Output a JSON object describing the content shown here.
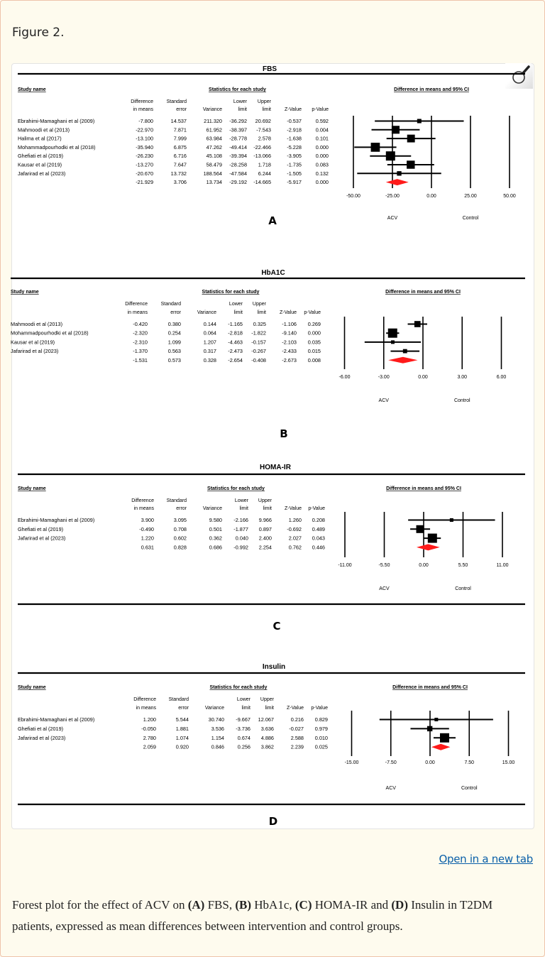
{
  "figure_label": "Figure 2.",
  "open_link": "Open in a new tab",
  "caption": {
    "parts": [
      "Forest plot for the effect of ACV on ",
      "(A)",
      " FBS, ",
      "(B)",
      " HbA1c, ",
      "(C)",
      " HOMA-IR and ",
      "(D)",
      " Insulin in T2DM patients, expressed as mean differences between intervention and control groups."
    ]
  },
  "icons": {
    "zoom": "magnifier-icon"
  },
  "colors": {
    "diamond": "#ff1a1a",
    "link": "#0a5fa8"
  },
  "chart_data": [
    {
      "type": "forest",
      "title": "FBS",
      "letter": "A",
      "study_header": "Study name",
      "stats_header": "Statistics for each study",
      "plot_header": "Difference in means and 95% CI",
      "columns": [
        [
          "Difference",
          "in means"
        ],
        [
          "Standard",
          "error"
        ],
        [
          "",
          "Variance"
        ],
        [
          "Lower",
          "limit"
        ],
        [
          "Upper",
          "limit"
        ],
        [
          "",
          "Z-Value"
        ],
        [
          "",
          "p-Value"
        ]
      ],
      "rows": [
        {
          "study": "Ebrahimi-Mamaghani et al (2009)",
          "values": [
            "-7.800",
            "14.537",
            "211.320",
            "-36.292",
            "20.692",
            "-0.537",
            "0.592"
          ],
          "estimate": -7.8,
          "lower": -36.292,
          "upper": 20.692,
          "variance": 211.32
        },
        {
          "study": "Mahmoodi et al (2013)",
          "values": [
            "-22.970",
            "7.871",
            "61.952",
            "-38.397",
            "-7.543",
            "-2.918",
            "0.004"
          ],
          "estimate": -22.97,
          "lower": -38.397,
          "upper": -7.543,
          "variance": 61.952
        },
        {
          "study": "Halima et al (2017)",
          "values": [
            "-13.100",
            "7.999",
            "63.984",
            "-28.778",
            "2.578",
            "-1.638",
            "0.101"
          ],
          "estimate": -13.1,
          "lower": -28.778,
          "upper": 2.578,
          "variance": 63.984
        },
        {
          "study": "Mohammadpourhodki et al (2018)",
          "values": [
            "-35.940",
            "6.875",
            "47.262",
            "-49.414",
            "-22.466",
            "-5.228",
            "0.000"
          ],
          "estimate": -35.94,
          "lower": -49.414,
          "upper": -22.466,
          "variance": 47.262
        },
        {
          "study": "Ghefiati et al (2019)",
          "values": [
            "-26.230",
            "6.716",
            "45.108",
            "-39.394",
            "-13.066",
            "-3.905",
            "0.000"
          ],
          "estimate": -26.23,
          "lower": -39.394,
          "upper": -13.066,
          "variance": 45.108
        },
        {
          "study": "Kausar et al (2019)",
          "values": [
            "-13.270",
            "7.647",
            "58.479",
            "-28.258",
            "1.718",
            "-1.735",
            "0.083"
          ],
          "estimate": -13.27,
          "lower": -28.258,
          "upper": 1.718,
          "variance": 58.479
        },
        {
          "study": "Jafarirad et al (2023)",
          "values": [
            "-20.670",
            "13.732",
            "188.564",
            "-47.584",
            "6.244",
            "-1.505",
            "0.132"
          ],
          "estimate": -20.67,
          "lower": -47.584,
          "upper": 6.244,
          "variance": 188.564
        }
      ],
      "summary": {
        "values": [
          "-21.929",
          "3.706",
          "13.734",
          "-29.192",
          "-14.665",
          "-5.917",
          "0.000"
        ],
        "estimate": -21.929,
        "lower": -29.192,
        "upper": -14.665
      },
      "ticks": [
        -50,
        -25,
        0,
        25,
        50
      ],
      "tick_labels": [
        "-50.00",
        "-25.00",
        "0.00",
        "25.00",
        "50.00"
      ],
      "xlim": [
        -50,
        50
      ],
      "left_label": "ACV",
      "right_label": "Control"
    },
    {
      "type": "forest",
      "title": "HbA1C",
      "letter": "B",
      "study_header": "Study name",
      "stats_header": "Statistics for each study",
      "plot_header": "Difference in means and 95% CI",
      "columns": [
        [
          "Difference",
          "in means"
        ],
        [
          "Standard",
          "error"
        ],
        [
          "",
          "Variance"
        ],
        [
          "Lower",
          "limit"
        ],
        [
          "Upper",
          "limit"
        ],
        [
          "",
          "Z-Value"
        ],
        [
          "",
          "p-Value"
        ]
      ],
      "rows": [
        {
          "study": "Mahmoodi et al (2013)",
          "values": [
            "-0.420",
            "0.380",
            "0.144",
            "-1.165",
            "0.325",
            "-1.106",
            "0.269"
          ],
          "estimate": -0.42,
          "lower": -1.165,
          "upper": 0.325,
          "variance": 0.144
        },
        {
          "study": "Mohammadpourhodki et al (2018)",
          "values": [
            "-2.320",
            "0.254",
            "0.064",
            "-2.818",
            "-1.822",
            "-9.140",
            "0.000"
          ],
          "estimate": -2.32,
          "lower": -2.818,
          "upper": -1.822,
          "variance": 0.064
        },
        {
          "study": "Kausar et al (2019)",
          "values": [
            "-2.310",
            "1.099",
            "1.207",
            "-4.463",
            "-0.157",
            "-2.103",
            "0.035"
          ],
          "estimate": -2.31,
          "lower": -4.463,
          "upper": -0.157,
          "variance": 1.207
        },
        {
          "study": "Jafarirad et al (2023)",
          "values": [
            "-1.370",
            "0.563",
            "0.317",
            "-2.473",
            "-0.267",
            "-2.433",
            "0.015"
          ],
          "estimate": -1.37,
          "lower": -2.473,
          "upper": -0.267,
          "variance": 0.317
        }
      ],
      "summary": {
        "values": [
          "-1.531",
          "0.573",
          "0.328",
          "-2.654",
          "-0.408",
          "-2.673",
          "0.008"
        ],
        "estimate": -1.531,
        "lower": -2.654,
        "upper": -0.408
      },
      "ticks": [
        -6,
        -3,
        0,
        3,
        6
      ],
      "tick_labels": [
        "-6.00",
        "-3.00",
        "0.00",
        "3.00",
        "6.00"
      ],
      "xlim": [
        -6,
        6
      ],
      "left_label": "ACV",
      "right_label": "Control"
    },
    {
      "type": "forest",
      "title": "HOMA-IR",
      "letter": "C",
      "study_header": "Study name",
      "stats_header": "Statistics for each study",
      "plot_header": "Difference in means and 95% CI",
      "columns": [
        [
          "Difference",
          "in means"
        ],
        [
          "Standard",
          "error"
        ],
        [
          "",
          "Variance"
        ],
        [
          "Lower",
          "limit"
        ],
        [
          "Upper",
          "limit"
        ],
        [
          "",
          "Z-Value"
        ],
        [
          "",
          "p-Value"
        ]
      ],
      "rows": [
        {
          "study": "Ebrahimi-Mamaghani et al (2009)",
          "values": [
            "3.900",
            "3.095",
            "9.580",
            "-2.166",
            "9.966",
            "1.260",
            "0.208"
          ],
          "estimate": 3.9,
          "lower": -2.166,
          "upper": 9.966,
          "variance": 9.58
        },
        {
          "study": "Ghefiati et al (2019)",
          "values": [
            "-0.490",
            "0.708",
            "0.501",
            "-1.877",
            "0.897",
            "-0.692",
            "0.489"
          ],
          "estimate": -0.49,
          "lower": -1.877,
          "upper": 0.897,
          "variance": 0.501
        },
        {
          "study": "Jafarirad et al (2023)",
          "values": [
            "1.220",
            "0.602",
            "0.362",
            "0.040",
            "2.400",
            "2.027",
            "0.043"
          ],
          "estimate": 1.22,
          "lower": 0.04,
          "upper": 2.4,
          "variance": 0.362
        }
      ],
      "summary": {
        "values": [
          "0.631",
          "0.828",
          "0.686",
          "-0.992",
          "2.254",
          "0.762",
          "0.446"
        ],
        "estimate": 0.631,
        "lower": -0.992,
        "upper": 2.254
      },
      "ticks": [
        -11,
        -5.5,
        0,
        5.5,
        11
      ],
      "tick_labels": [
        "-11.00",
        "-5.50",
        "0.00",
        "5.50",
        "11.00"
      ],
      "xlim": [
        -11,
        11
      ],
      "left_label": "ACV",
      "right_label": "Control"
    },
    {
      "type": "forest",
      "title": "Insulin",
      "letter": "D",
      "study_header": "Study name",
      "stats_header": "Statistics for each study",
      "plot_header": "Difference in means and 95% CI",
      "columns": [
        [
          "Difference",
          "in means"
        ],
        [
          "Standard",
          "error"
        ],
        [
          "",
          "Variance"
        ],
        [
          "Lower",
          "limit"
        ],
        [
          "Upper",
          "limit"
        ],
        [
          "",
          "Z-Value"
        ],
        [
          "",
          "p-Value"
        ]
      ],
      "rows": [
        {
          "study": "Ebrahimi-Mamaghani et al (2009)",
          "values": [
            "1.200",
            "5.544",
            "30.740",
            "-9.667",
            "12.067",
            "0.216",
            "0.829"
          ],
          "estimate": 1.2,
          "lower": -9.667,
          "upper": 12.067,
          "variance": 30.74
        },
        {
          "study": "Ghefiati et al (2019)",
          "values": [
            "-0.050",
            "1.881",
            "3.536",
            "-3.736",
            "3.636",
            "-0.027",
            "0.979"
          ],
          "estimate": -0.05,
          "lower": -3.736,
          "upper": 3.636,
          "variance": 3.536
        },
        {
          "study": "Jafarirad et al (2023)",
          "values": [
            "2.780",
            "1.074",
            "1.154",
            "0.674",
            "4.886",
            "2.588",
            "0.010"
          ],
          "estimate": 2.78,
          "lower": 0.674,
          "upper": 4.886,
          "variance": 1.154
        }
      ],
      "summary": {
        "values": [
          "2.059",
          "0.920",
          "0.846",
          "0.256",
          "3.862",
          "2.239",
          "0.025"
        ],
        "estimate": 2.059,
        "lower": 0.256,
        "upper": 3.862
      },
      "ticks": [
        -15,
        -7.5,
        0,
        7.5,
        15
      ],
      "tick_labels": [
        "-15.00",
        "-7.50",
        "0.00",
        "7.50",
        "15.00"
      ],
      "xlim": [
        -15,
        15
      ],
      "left_label": "ACV",
      "right_label": "Control"
    }
  ]
}
